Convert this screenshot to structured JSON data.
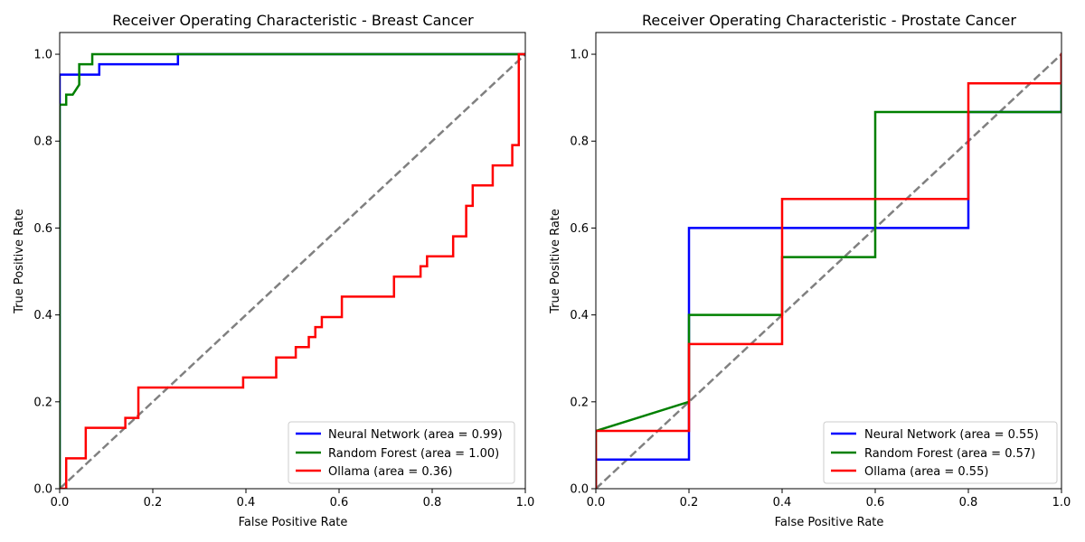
{
  "chart_data": [
    {
      "type": "line",
      "title": "Receiver Operating Characteristic - Breast Cancer",
      "xlabel": "False Positive Rate",
      "ylabel": "True Positive Rate",
      "xlim": [
        0.0,
        1.0
      ],
      "ylim": [
        0.0,
        1.05
      ],
      "xticks": [
        "0.0",
        "0.2",
        "0.4",
        "0.6",
        "0.8",
        "1.0"
      ],
      "yticks": [
        "0.0",
        "0.2",
        "0.4",
        "0.6",
        "0.8",
        "1.0"
      ],
      "grid": false,
      "legend_position": "lower-right",
      "series": [
        {
          "name": "Neural Network (area = 0.99)",
          "color": "#0000ff",
          "x": [
            0,
            0,
            0.085,
            0.085,
            0.254,
            0.254,
            1.0
          ],
          "y": [
            0,
            0.953,
            0.953,
            0.977,
            0.977,
            1.0,
            1.0
          ]
        },
        {
          "name": "Random Forest (area = 1.00)",
          "color": "#008000",
          "x": [
            0,
            0,
            0.014,
            0.014,
            0.028,
            0.042,
            0.042,
            0.07,
            0.07,
            1.0
          ],
          "y": [
            0,
            0.884,
            0.884,
            0.907,
            0.907,
            0.93,
            0.977,
            0.977,
            1.0,
            1.0
          ]
        },
        {
          "name": "Ollama (area = 0.36)",
          "color": "#ff0000",
          "x": [
            0,
            0.014,
            0.014,
            0.056,
            0.056,
            0.141,
            0.141,
            0.169,
            0.169,
            0.394,
            0.394,
            0.465,
            0.465,
            0.507,
            0.507,
            0.535,
            0.535,
            0.549,
            0.549,
            0.563,
            0.563,
            0.606,
            0.606,
            0.718,
            0.718,
            0.775,
            0.775,
            0.789,
            0.789,
            0.845,
            0.845,
            0.873,
            0.873,
            0.887,
            0.887,
            0.93,
            0.93,
            0.972,
            0.972,
            0.986,
            0.986,
            1.0
          ],
          "y": [
            0,
            0,
            0.07,
            0.07,
            0.14,
            0.14,
            0.163,
            0.163,
            0.233,
            0.233,
            0.256,
            0.256,
            0.302,
            0.302,
            0.326,
            0.326,
            0.349,
            0.349,
            0.372,
            0.372,
            0.395,
            0.395,
            0.442,
            0.442,
            0.488,
            0.488,
            0.512,
            0.512,
            0.535,
            0.535,
            0.581,
            0.581,
            0.651,
            0.651,
            0.698,
            0.698,
            0.744,
            0.744,
            0.791,
            0.791,
            1.0,
            1.0
          ]
        }
      ],
      "reference_line": {
        "x": [
          0,
          1
        ],
        "y": [
          0,
          1
        ],
        "color": "#808080",
        "style": "dashed"
      }
    },
    {
      "type": "line",
      "title": "Receiver Operating Characteristic - Prostate Cancer",
      "xlabel": "False Positive Rate",
      "ylabel": "True Positive Rate",
      "xlim": [
        0.0,
        1.0
      ],
      "ylim": [
        0.0,
        1.05
      ],
      "xticks": [
        "0.0",
        "0.2",
        "0.4",
        "0.6",
        "0.8",
        "1.0"
      ],
      "yticks": [
        "0.0",
        "0.2",
        "0.4",
        "0.6",
        "0.8",
        "1.0"
      ],
      "grid": false,
      "legend_position": "lower-right",
      "series": [
        {
          "name": "Neural Network (area = 0.55)",
          "color": "#0000ff",
          "x": [
            0,
            0,
            0.2,
            0.2,
            0.8,
            0.8,
            1.0,
            1.0
          ],
          "y": [
            0,
            0.067,
            0.067,
            0.6,
            0.6,
            0.867,
            0.867,
            1.0
          ]
        },
        {
          "name": "Random Forest (area = 0.57)",
          "color": "#008000",
          "x": [
            0,
            0,
            0.2,
            0.2,
            0.4,
            0.4,
            0.6,
            0.6,
            1.0,
            1.0
          ],
          "y": [
            0,
            0.133,
            0.2,
            0.4,
            0.4,
            0.533,
            0.533,
            0.867,
            0.867,
            1.0
          ]
        },
        {
          "name": "Ollama (area = 0.55)",
          "color": "#ff0000",
          "x": [
            0,
            0,
            0.2,
            0.2,
            0.4,
            0.4,
            0.8,
            0.8,
            1.0,
            1.0
          ],
          "y": [
            0,
            0.133,
            0.133,
            0.333,
            0.333,
            0.667,
            0.667,
            0.933,
            0.933,
            1.0
          ]
        }
      ],
      "reference_line": {
        "x": [
          0,
          1
        ],
        "y": [
          0,
          1
        ],
        "color": "#808080",
        "style": "dashed"
      }
    }
  ]
}
